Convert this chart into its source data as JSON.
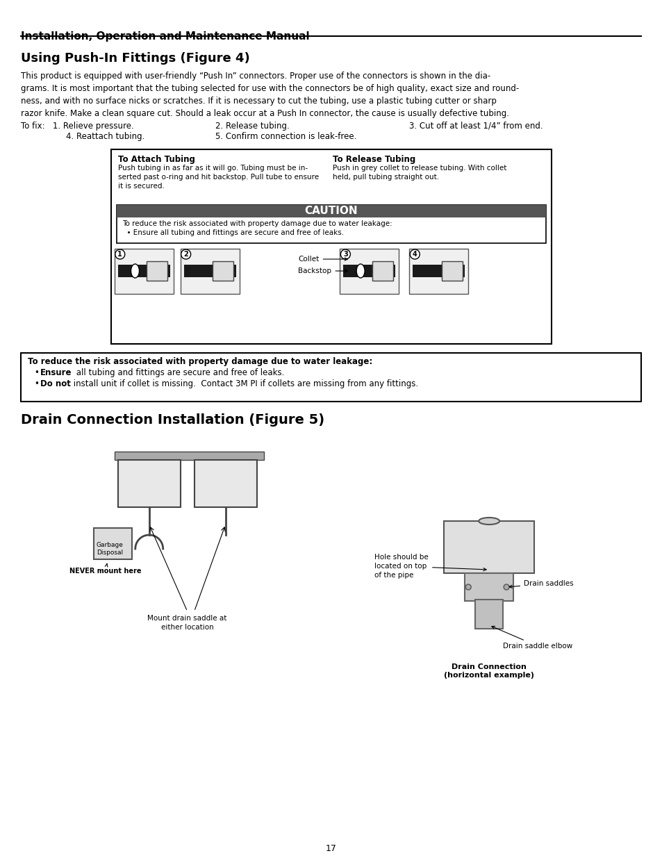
{
  "title": "Installation, Operation and Maintenance Manual",
  "section1_title": "Using Push-In Fittings (Figure 4)",
  "section1_body": "This product is equipped with user-friendly “Push In” connectors. Proper use of the connectors is shown in the dia-\ngrams. It is most important that the tubing selected for use with the connectors be of high quality, exact size and round-\nness, and with no surface nicks or scratches. If it is necessary to cut the tubing, use a plastic tubing cutter or sharp\nrazor knife. Make a clean square cut. Should a leak occur at a Push In connector, the cause is usually defective tubing.",
  "tofix_line1": "To fix:   1. Relieve pressure.                            2. Release tubing.                              3. Cut off at least 1/4” from end.",
  "tofix_line2": "             4. Reattach tubing.                          5. Confirm connection is leak-free.",
  "attach_title": "To Attach Tubing",
  "attach_body": "Push tubing in as far as it will go. Tubing must be in-\nserted past o-ring and hit backstop. Pull tube to ensure\nit is secured.",
  "release_title": "To Release Tubing",
  "release_body": "Push in grey collet to release tubing. With collet\nheld, pull tubing straight out.",
  "caution_title": "CAUTION",
  "caution_body": "To reduce the risk associated with property damage due to water leakage:\n  • Ensure all tubing and fittings are secure and free of leaks.",
  "warning_box_line1": "To reduce the risk associated with property damage due to water leakage:",
  "warning_box_bullet1": "• Ensure all tubing and fittings are secure and free of leaks.",
  "warning_box_bullet2": "• Do not install unit if collet is missing.  Contact 3M PI if collets are missing from any fittings.",
  "section2_title": "Drain Connection Installation (Figure 5)",
  "label_drain_saddle_elbow": "Drain saddle elbow",
  "label_hole": "Hole should be\nlocated on top\nof the pipe",
  "label_drain_saddles": "Drain saddles",
  "label_garbage": "Garbage\nDisposal",
  "label_never": "NEVER mount here",
  "label_mount": "Mount drain saddle at\neither location",
  "label_drain_conn": "Drain Connection\n(horizontal example)",
  "label_collet": "Collet",
  "label_backstop": "Backstop",
  "page_number": "17",
  "bg_color": "#ffffff",
  "text_color": "#000000",
  "border_color": "#000000"
}
